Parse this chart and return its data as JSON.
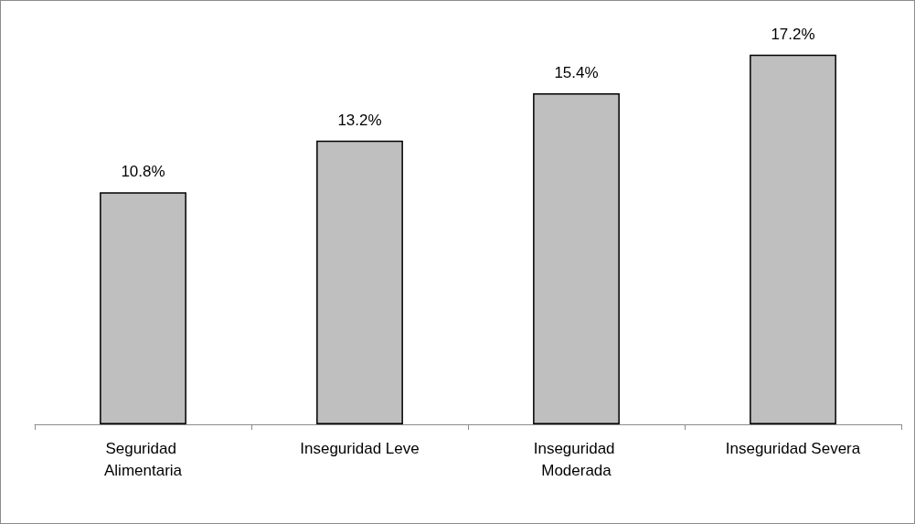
{
  "chart_data": {
    "type": "bar",
    "categories": [
      "Seguridad Alimentaria",
      "Inseguridad Leve",
      "Inseguridad Moderada",
      "Inseguridad Severa"
    ],
    "values": [
      10.8,
      13.2,
      15.4,
      17.2
    ],
    "value_labels": [
      "10.8%",
      "13.2%",
      "15.4%",
      "17.2%"
    ],
    "color": "#bfbfbf"
  }
}
